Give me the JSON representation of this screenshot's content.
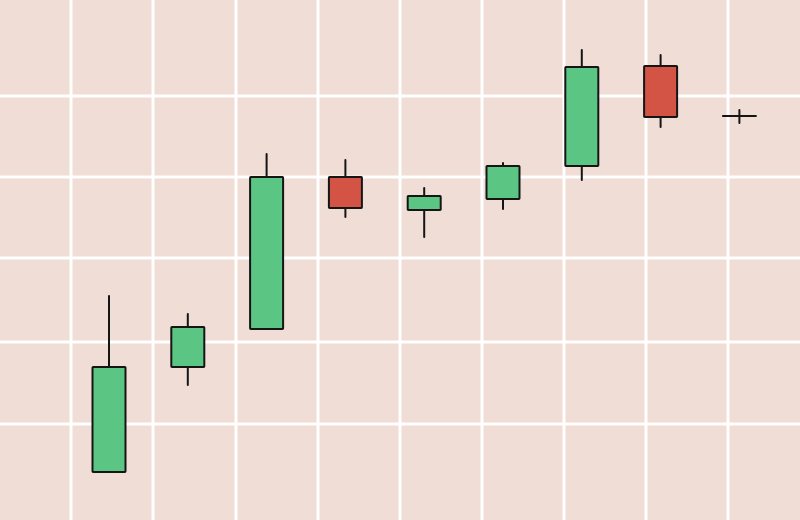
{
  "chart_data": {
    "type": "candlestick",
    "grid": true,
    "ylim": [
      0,
      520
    ],
    "colors": {
      "background": "#efddd6",
      "grid": "#ffffff",
      "up": "#5bc583",
      "down": "#d35444",
      "outline": "#151515"
    },
    "candles": [
      {
        "index": 0,
        "open": 48,
        "high": 224,
        "low": 48,
        "close": 153
      },
      {
        "index": 1,
        "open": 153,
        "high": 206,
        "low": 135,
        "close": 193
      },
      {
        "index": 2,
        "open": 191,
        "high": 366,
        "low": 191,
        "close": 343
      },
      {
        "index": 3,
        "open": 343,
        "high": 360,
        "low": 303,
        "close": 312
      },
      {
        "index": 4,
        "open": 310,
        "high": 332,
        "low": 283,
        "close": 324
      },
      {
        "index": 5,
        "open": 321,
        "high": 357,
        "low": 311,
        "close": 354
      },
      {
        "index": 6,
        "open": 354,
        "high": 470,
        "low": 340,
        "close": 453
      },
      {
        "index": 7,
        "open": 454,
        "high": 465,
        "low": 393,
        "close": 403
      },
      {
        "index": 8,
        "open": 404,
        "high": 410,
        "low": 397,
        "close": 404
      }
    ]
  }
}
